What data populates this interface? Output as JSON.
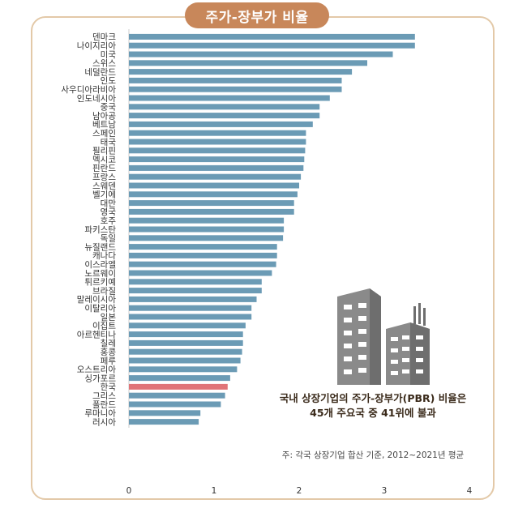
{
  "title": "주가-장부가 비율",
  "chart_data": {
    "type": "bar",
    "orientation": "horizontal",
    "title": "주가-장부가 비율",
    "categories": [
      "덴마크",
      "나이지리아",
      "미국",
      "스위스",
      "네덜란드",
      "인도",
      "사우디아라비아",
      "인도네시아",
      "중국",
      "남아공",
      "베트남",
      "스페인",
      "태국",
      "필리핀",
      "멕시코",
      "핀란드",
      "프랑스",
      "스웨덴",
      "벨기에",
      "대만",
      "영국",
      "호주",
      "파키스탄",
      "독일",
      "뉴질랜드",
      "캐나다",
      "이스라엘",
      "노르웨이",
      "튀르키예",
      "브라질",
      "말레이시아",
      "이탈리아",
      "일본",
      "이집트",
      "아르헨티나",
      "칠레",
      "홍콩",
      "페루",
      "오스트리아",
      "싱가포르",
      "한국",
      "그리스",
      "폴란드",
      "루마니아",
      "러시아"
    ],
    "values": [
      3.36,
      3.36,
      3.1,
      2.8,
      2.62,
      2.5,
      2.5,
      2.36,
      2.24,
      2.24,
      2.16,
      2.08,
      2.08,
      2.07,
      2.06,
      2.05,
      2.02,
      2.0,
      1.98,
      1.94,
      1.94,
      1.82,
      1.82,
      1.81,
      1.74,
      1.74,
      1.73,
      1.68,
      1.56,
      1.56,
      1.5,
      1.44,
      1.44,
      1.37,
      1.34,
      1.34,
      1.33,
      1.31,
      1.27,
      1.19,
      1.16,
      1.13,
      1.08,
      0.84,
      0.82
    ],
    "highlight": "한국",
    "bar_color": "#6b9bb5",
    "highlight_color": "#e07478",
    "xlim": [
      0,
      4
    ],
    "xticks": [
      "0",
      "1",
      "2",
      "3",
      "4"
    ],
    "xlabel": "",
    "ylabel": ""
  },
  "annotation": {
    "line1": "국내 상장기업의 주가-장부가(PBR) 비율은",
    "line2": "45개 주요국 중 41위에 불과"
  },
  "note": "주: 각국 상장기업 합산 기준, 2012~2021년 평균",
  "colors": {
    "frame": "#e3c9a8",
    "title_bg": "#c8875a",
    "building": "#8a8a8a",
    "building_dark": "#6e6e6e"
  }
}
